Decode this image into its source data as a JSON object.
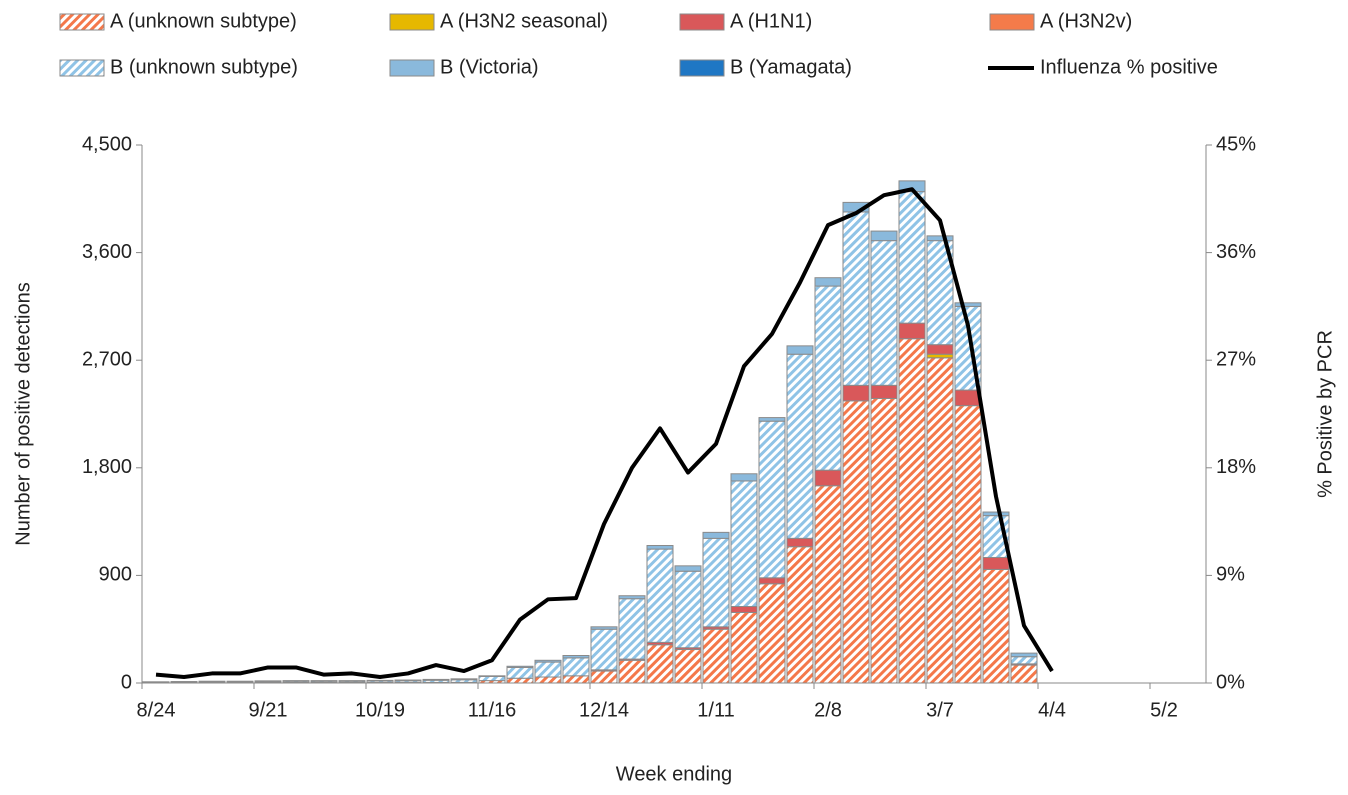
{
  "chart_data": {
    "type": "bar",
    "xlabel": "Week ending",
    "ylabel": "Number of positive detections",
    "y2label": "% Positive by PCR",
    "categories": [
      "8/24",
      null,
      null,
      null,
      "9/21",
      null,
      null,
      null,
      "10/19",
      null,
      null,
      null,
      "11/16",
      null,
      null,
      null,
      "12/14",
      null,
      null,
      null,
      "1/11",
      null,
      null,
      null,
      "2/8",
      null,
      null,
      null,
      "3/7",
      null,
      null,
      null,
      "4/4",
      null,
      null,
      null,
      "5/2",
      null
    ],
    "stacked": true,
    "series": [
      {
        "name": "A (unknown subtype)",
        "color": "#f4784a",
        "hatch": true,
        "values": [
          5,
          5,
          5,
          5,
          5,
          5,
          5,
          5,
          5,
          5,
          5,
          5,
          20,
          40,
          50,
          60,
          100,
          190,
          320,
          280,
          450,
          590,
          830,
          1140,
          1650,
          2360,
          2380,
          2880,
          2720,
          2320,
          950,
          150,
          null,
          null,
          null,
          null,
          null,
          null
        ]
      },
      {
        "name": "A (H3N2 seasonal)",
        "color": "#e6b800",
        "values": [
          0,
          0,
          0,
          0,
          0,
          0,
          0,
          0,
          0,
          0,
          0,
          0,
          0,
          0,
          0,
          0,
          0,
          0,
          0,
          0,
          0,
          0,
          0,
          0,
          0,
          0,
          0,
          0,
          30,
          0,
          0,
          0,
          null,
          null,
          null,
          null,
          null,
          null
        ]
      },
      {
        "name": "A (H1N1)",
        "color": "#d9585a",
        "values": [
          0,
          0,
          0,
          0,
          0,
          0,
          0,
          0,
          0,
          0,
          0,
          0,
          0,
          0,
          0,
          0,
          10,
          10,
          20,
          15,
          20,
          50,
          50,
          70,
          130,
          130,
          110,
          130,
          80,
          130,
          100,
          10,
          null,
          null,
          null,
          null,
          null,
          null
        ]
      },
      {
        "name": "A (H3N2v)",
        "color": "#f47b4a",
        "values": [
          0,
          0,
          0,
          0,
          0,
          0,
          0,
          0,
          0,
          0,
          0,
          0,
          0,
          0,
          0,
          0,
          0,
          0,
          0,
          0,
          0,
          0,
          0,
          0,
          0,
          0,
          0,
          0,
          0,
          0,
          0,
          0,
          null,
          null,
          null,
          null,
          null,
          null
        ]
      },
      {
        "name": "B (unknown subtype)",
        "color": "#8fc3e6",
        "hatch": true,
        "values": [
          3,
          5,
          7,
          7,
          9,
          10,
          10,
          10,
          12,
          14,
          18,
          22,
          35,
          90,
          125,
          150,
          340,
          505,
          780,
          640,
          740,
          1050,
          1310,
          1540,
          1540,
          1450,
          1210,
          1100,
          870,
          700,
          350,
          60,
          null,
          null,
          null,
          null,
          null,
          null
        ]
      },
      {
        "name": "B (Victoria)",
        "color": "#8ab9dc",
        "values": [
          2,
          2,
          3,
          3,
          4,
          5,
          5,
          5,
          5,
          6,
          7,
          8,
          5,
          10,
          15,
          20,
          20,
          25,
          30,
          45,
          50,
          60,
          30,
          70,
          70,
          80,
          80,
          90,
          40,
          30,
          30,
          30,
          null,
          null,
          null,
          null,
          null,
          null
        ]
      },
      {
        "name": "B (Yamagata)",
        "color": "#1f77c4",
        "values": [
          0,
          0,
          0,
          0,
          0,
          0,
          0,
          0,
          0,
          0,
          0,
          0,
          0,
          0,
          0,
          0,
          0,
          0,
          0,
          0,
          0,
          0,
          0,
          0,
          0,
          0,
          0,
          0,
          0,
          0,
          0,
          0,
          null,
          null,
          null,
          null,
          null,
          null
        ]
      },
      {
        "name": "Influenza % positive",
        "color": "#000000",
        "type": "line",
        "axis": "y2",
        "values": [
          0.7,
          0.5,
          0.8,
          0.8,
          1.3,
          1.3,
          0.7,
          0.8,
          0.5,
          0.8,
          1.5,
          1.0,
          1.9,
          5.3,
          7.0,
          7.1,
          13.3,
          18.0,
          21.3,
          17.6,
          20.0,
          26.5,
          29.2,
          33.5,
          38.3,
          39.3,
          40.8,
          41.3,
          38.7,
          29.9,
          15.6,
          4.8,
          1.0,
          null,
          null,
          null,
          null,
          null
        ]
      }
    ],
    "ylim": [
      0,
      4500
    ],
    "yticks": [
      0,
      {
        "value": 900,
        "label": "900"
      },
      {
        "value": 1800,
        "label": "1,800"
      },
      {
        "value": 2700,
        "label": "2,700"
      },
      {
        "value": 3600,
        "label": "3,600"
      },
      {
        "value": 4500,
        "label": "4,500"
      }
    ],
    "y2lim": [
      0,
      45
    ],
    "y2ticks": [
      {
        "value": 0,
        "label": "0%"
      },
      {
        "value": 9,
        "label": "9%"
      },
      {
        "value": 18,
        "label": "18%"
      },
      {
        "value": 27,
        "label": "27%"
      },
      {
        "value": 36,
        "label": "36%"
      },
      {
        "value": 45,
        "label": "45%"
      }
    ],
    "legend": "top"
  }
}
